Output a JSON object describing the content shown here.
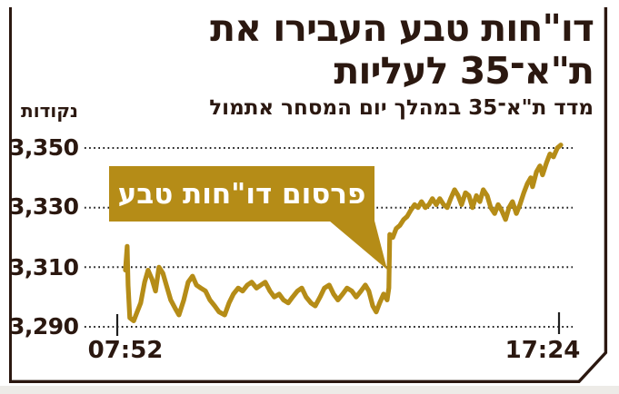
{
  "header": {
    "title_line1": "דו\"חות טבע העבירו את",
    "title_line2": "ת\"א־35 לעליות",
    "subtitle": "מדד ת\"א־35 במהלך יום המסחר אתמול"
  },
  "axis": {
    "unit_label": "נקודות",
    "y_tick_labels": [
      "3,350",
      "3,330",
      "3,310",
      "3,290"
    ],
    "x_tick_labels": [
      "07:52",
      "17:24"
    ]
  },
  "annotation": {
    "label": "פרסום דו\"חות טבע"
  },
  "colors": {
    "line": "#b58c17",
    "annotation_bg": "#b58c17",
    "text": "#2b1810",
    "grid": "#1f1f1f",
    "frame": "#2b1810"
  },
  "chart_data": {
    "type": "line",
    "title": "מדד ת\"א־35 במהלך יום המסחר אתמול",
    "ylabel": "נקודות",
    "ylim": [
      3290,
      3350
    ],
    "y_ticks": [
      3350,
      3330,
      3310,
      3290
    ],
    "x_range": [
      "07:52",
      "17:24"
    ],
    "legend": "none",
    "grid": "dotted-horizontal",
    "annotation": {
      "text": "פרסום דו\"חות טבע",
      "points_at_value": 3321,
      "points_at_t": 0.607
    },
    "points": [
      [
        0,
        3309
      ],
      [
        0.004,
        3317
      ],
      [
        0.006,
        3304
      ],
      [
        0.01,
        3293
      ],
      [
        0.019,
        3292
      ],
      [
        0.027,
        3295
      ],
      [
        0.035,
        3298
      ],
      [
        0.044,
        3305
      ],
      [
        0.052,
        3309
      ],
      [
        0.061,
        3306
      ],
      [
        0.069,
        3302
      ],
      [
        0.077,
        3310
      ],
      [
        0.086,
        3308
      ],
      [
        0.094,
        3304
      ],
      [
        0.104,
        3299
      ],
      [
        0.115,
        3296
      ],
      [
        0.123,
        3294
      ],
      [
        0.134,
        3299
      ],
      [
        0.144,
        3305
      ],
      [
        0.154,
        3307
      ],
      [
        0.163,
        3304
      ],
      [
        0.173,
        3303
      ],
      [
        0.184,
        3302
      ],
      [
        0.194,
        3299
      ],
      [
        0.205,
        3297
      ],
      [
        0.215,
        3295
      ],
      [
        0.228,
        3294
      ],
      [
        0.238,
        3298
      ],
      [
        0.248,
        3301
      ],
      [
        0.259,
        3303
      ],
      [
        0.269,
        3302
      ],
      [
        0.28,
        3304
      ],
      [
        0.29,
        3305
      ],
      [
        0.301,
        3303
      ],
      [
        0.311,
        3304
      ],
      [
        0.321,
        3305
      ],
      [
        0.332,
        3302
      ],
      [
        0.342,
        3300
      ],
      [
        0.353,
        3301
      ],
      [
        0.363,
        3299
      ],
      [
        0.374,
        3298
      ],
      [
        0.384,
        3300
      ],
      [
        0.395,
        3302
      ],
      [
        0.405,
        3303
      ],
      [
        0.415,
        3300
      ],
      [
        0.426,
        3298
      ],
      [
        0.436,
        3297
      ],
      [
        0.447,
        3300
      ],
      [
        0.457,
        3303
      ],
      [
        0.468,
        3304
      ],
      [
        0.478,
        3301
      ],
      [
        0.488,
        3299
      ],
      [
        0.499,
        3301
      ],
      [
        0.509,
        3303
      ],
      [
        0.52,
        3302
      ],
      [
        0.53,
        3300
      ],
      [
        0.541,
        3302
      ],
      [
        0.551,
        3304
      ],
      [
        0.559,
        3302
      ],
      [
        0.568,
        3297
      ],
      [
        0.576,
        3295
      ],
      [
        0.584,
        3298
      ],
      [
        0.593,
        3301
      ],
      [
        0.601,
        3299
      ],
      [
        0.605,
        3303
      ],
      [
        0.607,
        3321
      ],
      [
        0.614,
        3320
      ],
      [
        0.622,
        3323
      ],
      [
        0.63,
        3324
      ],
      [
        0.639,
        3326
      ],
      [
        0.647,
        3327
      ],
      [
        0.655,
        3329
      ],
      [
        0.664,
        3331
      ],
      [
        0.672,
        3330
      ],
      [
        0.68,
        3332
      ],
      [
        0.689,
        3330
      ],
      [
        0.697,
        3331
      ],
      [
        0.705,
        3333
      ],
      [
        0.714,
        3331
      ],
      [
        0.722,
        3333
      ],
      [
        0.731,
        3331
      ],
      [
        0.739,
        3330
      ],
      [
        0.747,
        3333
      ],
      [
        0.756,
        3336
      ],
      [
        0.764,
        3334
      ],
      [
        0.772,
        3331
      ],
      [
        0.781,
        3335
      ],
      [
        0.789,
        3334
      ],
      [
        0.797,
        3330
      ],
      [
        0.806,
        3334
      ],
      [
        0.814,
        3332
      ],
      [
        0.822,
        3336
      ],
      [
        0.831,
        3334
      ],
      [
        0.839,
        3330
      ],
      [
        0.848,
        3328
      ],
      [
        0.856,
        3331
      ],
      [
        0.864,
        3329
      ],
      [
        0.873,
        3326
      ],
      [
        0.881,
        3330
      ],
      [
        0.889,
        3332
      ],
      [
        0.898,
        3328
      ],
      [
        0.906,
        3331
      ],
      [
        0.915,
        3335
      ],
      [
        0.923,
        3338
      ],
      [
        0.931,
        3340
      ],
      [
        0.935,
        3337
      ],
      [
        0.944,
        3342
      ],
      [
        0.952,
        3344
      ],
      [
        0.958,
        3341
      ],
      [
        0.967,
        3345
      ],
      [
        0.975,
        3348
      ],
      [
        0.983,
        3347
      ],
      [
        0.992,
        3350
      ],
      [
        1,
        3351
      ]
    ]
  }
}
